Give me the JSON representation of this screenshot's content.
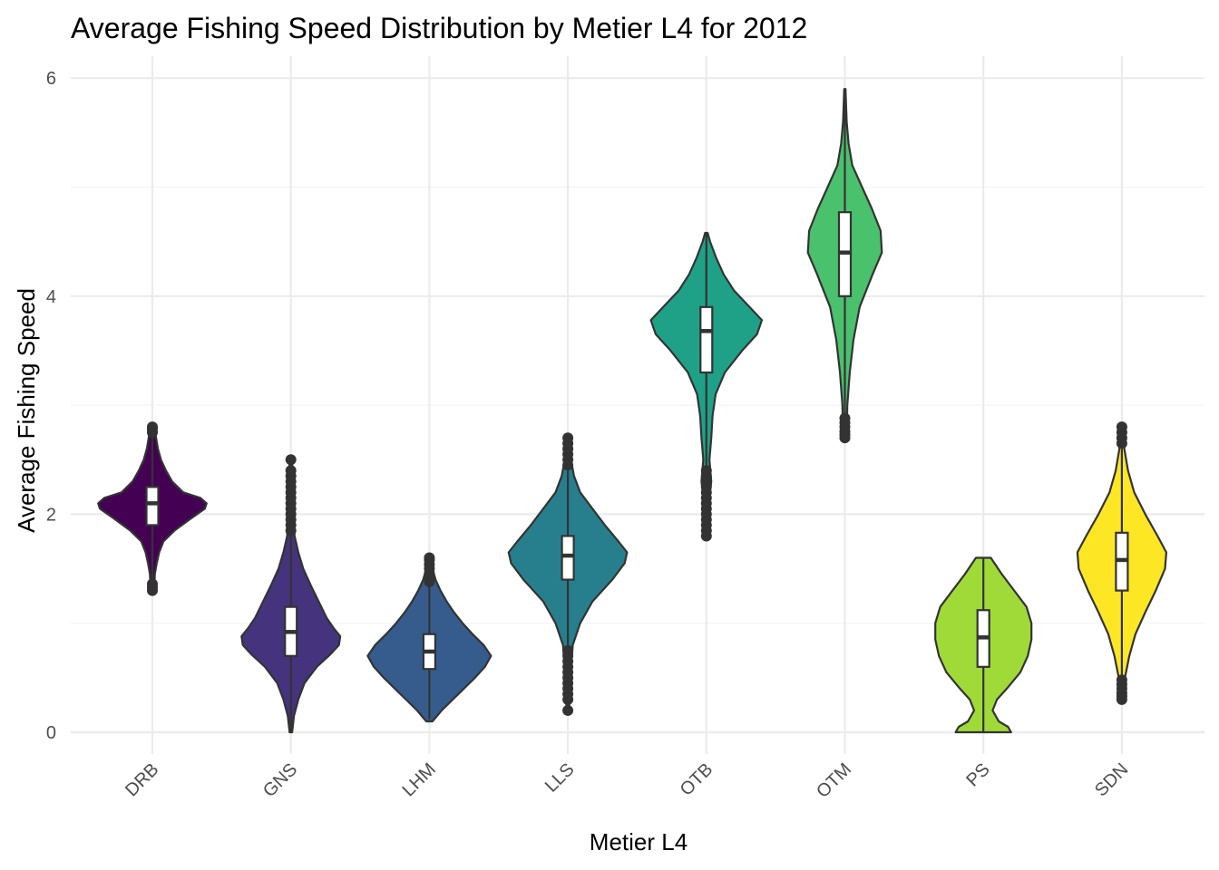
{
  "chart_data": {
    "type": "violin",
    "title": "Average Fishing Speed Distribution by Metier L4 for 2012",
    "xlabel": "Metier L4",
    "ylabel": "Average Fishing Speed",
    "ylim": [
      -0.2,
      6.2
    ],
    "yticks": [
      0,
      2,
      4,
      6
    ],
    "grid": true,
    "legend": "none",
    "categories": [
      "DRB",
      "GNS",
      "LHM",
      "LLS",
      "OTB",
      "OTM",
      "PS",
      "SDN"
    ],
    "series": [
      {
        "category": "DRB",
        "color": "#440154",
        "min": 1.3,
        "max": 2.8,
        "q1": 1.9,
        "median": 2.1,
        "q3": 2.25,
        "whisker_low": 1.38,
        "whisker_high": 2.72,
        "outliers": [
          1.3,
          1.33,
          1.36,
          2.75,
          2.78,
          2.8
        ],
        "density": [
          [
            1.3,
            0.03
          ],
          [
            1.45,
            0.04
          ],
          [
            1.55,
            0.07
          ],
          [
            1.65,
            0.11
          ],
          [
            1.75,
            0.18
          ],
          [
            1.85,
            0.36
          ],
          [
            1.95,
            0.6
          ],
          [
            2.05,
            0.85
          ],
          [
            2.1,
            0.88
          ],
          [
            2.15,
            0.78
          ],
          [
            2.2,
            0.5
          ],
          [
            2.3,
            0.32
          ],
          [
            2.4,
            0.22
          ],
          [
            2.5,
            0.14
          ],
          [
            2.6,
            0.09
          ],
          [
            2.7,
            0.06
          ],
          [
            2.8,
            0.04
          ]
        ]
      },
      {
        "category": "GNS",
        "color": "#46337E",
        "min": 0.0,
        "max": 2.5,
        "q1": 0.7,
        "median": 0.92,
        "q3": 1.15,
        "whisker_low": 0.0,
        "whisker_high": 1.8,
        "outliers": [
          1.85,
          1.9,
          1.95,
          2.0,
          2.05,
          2.1,
          2.15,
          2.2,
          2.25,
          2.3,
          2.35,
          2.4,
          2.5
        ],
        "density": [
          [
            0.0,
            0.02
          ],
          [
            0.15,
            0.05
          ],
          [
            0.3,
            0.12
          ],
          [
            0.45,
            0.22
          ],
          [
            0.6,
            0.42
          ],
          [
            0.72,
            0.65
          ],
          [
            0.8,
            0.78
          ],
          [
            0.88,
            0.8
          ],
          [
            0.95,
            0.7
          ],
          [
            1.05,
            0.58
          ],
          [
            1.2,
            0.45
          ],
          [
            1.35,
            0.32
          ],
          [
            1.5,
            0.2
          ],
          [
            1.65,
            0.12
          ],
          [
            1.8,
            0.06
          ],
          [
            2.0,
            0.04
          ],
          [
            2.5,
            0.02
          ]
        ]
      },
      {
        "category": "LHM",
        "color": "#365C8D",
        "min": 0.1,
        "max": 1.6,
        "q1": 0.58,
        "median": 0.74,
        "q3": 0.9,
        "whisker_low": 0.12,
        "whisker_high": 1.36,
        "outliers": [
          1.38,
          1.42,
          1.46,
          1.5,
          1.54,
          1.58,
          1.6
        ],
        "density": [
          [
            0.1,
            0.05
          ],
          [
            0.2,
            0.2
          ],
          [
            0.3,
            0.38
          ],
          [
            0.4,
            0.56
          ],
          [
            0.5,
            0.74
          ],
          [
            0.6,
            0.9
          ],
          [
            0.7,
            1.0
          ],
          [
            0.8,
            0.88
          ],
          [
            0.9,
            0.7
          ],
          [
            1.0,
            0.54
          ],
          [
            1.1,
            0.4
          ],
          [
            1.2,
            0.28
          ],
          [
            1.3,
            0.18
          ],
          [
            1.4,
            0.1
          ],
          [
            1.5,
            0.05
          ],
          [
            1.6,
            0.03
          ]
        ]
      },
      {
        "category": "LLS",
        "color": "#277F8E",
        "min": 0.2,
        "max": 2.7,
        "q1": 1.4,
        "median": 1.62,
        "q3": 1.8,
        "whisker_low": 0.8,
        "whisker_high": 2.4,
        "outliers": [
          0.2,
          0.3,
          0.35,
          0.4,
          0.45,
          0.5,
          0.55,
          0.6,
          0.65,
          0.7,
          0.75,
          2.45,
          2.5,
          2.55,
          2.6,
          2.65,
          2.7
        ],
        "density": [
          [
            0.2,
            0.02
          ],
          [
            0.5,
            0.04
          ],
          [
            0.8,
            0.08
          ],
          [
            1.0,
            0.2
          ],
          [
            1.2,
            0.4
          ],
          [
            1.4,
            0.72
          ],
          [
            1.55,
            0.92
          ],
          [
            1.65,
            0.96
          ],
          [
            1.75,
            0.82
          ],
          [
            1.9,
            0.6
          ],
          [
            2.05,
            0.4
          ],
          [
            2.2,
            0.2
          ],
          [
            2.35,
            0.1
          ],
          [
            2.5,
            0.05
          ],
          [
            2.7,
            0.02
          ]
        ]
      },
      {
        "category": "OTB",
        "color": "#1FA187",
        "min": 1.8,
        "max": 4.58,
        "q1": 3.3,
        "median": 3.68,
        "q3": 3.9,
        "whisker_low": 2.4,
        "whisker_high": 4.58,
        "outliers": [
          1.8,
          1.85,
          1.9,
          1.95,
          2.0,
          2.05,
          2.1,
          2.15,
          2.2,
          2.25,
          2.3,
          2.35,
          2.4
        ],
        "density": [
          [
            1.8,
            0.03
          ],
          [
            2.1,
            0.04
          ],
          [
            2.3,
            0.08
          ],
          [
            2.5,
            0.05
          ],
          [
            2.7,
            0.08
          ],
          [
            2.9,
            0.1
          ],
          [
            3.1,
            0.15
          ],
          [
            3.3,
            0.3
          ],
          [
            3.5,
            0.58
          ],
          [
            3.65,
            0.82
          ],
          [
            3.78,
            0.9
          ],
          [
            3.9,
            0.7
          ],
          [
            4.05,
            0.45
          ],
          [
            4.2,
            0.28
          ],
          [
            4.35,
            0.16
          ],
          [
            4.5,
            0.06
          ],
          [
            4.58,
            0.02
          ]
        ]
      },
      {
        "category": "OTM",
        "color": "#4AC16D",
        "min": 2.7,
        "max": 5.9,
        "q1": 4.0,
        "median": 4.4,
        "q3": 4.77,
        "whisker_low": 2.9,
        "whisker_high": 5.9,
        "outliers": [
          2.7,
          2.73,
          2.76,
          2.8,
          2.84,
          2.88
        ],
        "density": [
          [
            2.7,
            0.03
          ],
          [
            3.0,
            0.04
          ],
          [
            3.3,
            0.08
          ],
          [
            3.6,
            0.14
          ],
          [
            3.9,
            0.24
          ],
          [
            4.2,
            0.45
          ],
          [
            4.4,
            0.6
          ],
          [
            4.6,
            0.58
          ],
          [
            4.8,
            0.44
          ],
          [
            5.0,
            0.28
          ],
          [
            5.2,
            0.12
          ],
          [
            5.4,
            0.06
          ],
          [
            5.6,
            0.03
          ],
          [
            5.9,
            0.01
          ]
        ]
      },
      {
        "category": "PS",
        "color": "#A0DA39",
        "min": 0.0,
        "max": 1.6,
        "q1": 0.6,
        "median": 0.87,
        "q3": 1.12,
        "whisker_low": 0.0,
        "whisker_high": 1.6,
        "outliers": [],
        "density": [
          [
            0.0,
            0.45
          ],
          [
            0.05,
            0.4
          ],
          [
            0.1,
            0.25
          ],
          [
            0.2,
            0.15
          ],
          [
            0.3,
            0.22
          ],
          [
            0.4,
            0.38
          ],
          [
            0.55,
            0.6
          ],
          [
            0.7,
            0.72
          ],
          [
            0.85,
            0.78
          ],
          [
            1.0,
            0.78
          ],
          [
            1.15,
            0.7
          ],
          [
            1.3,
            0.5
          ],
          [
            1.45,
            0.3
          ],
          [
            1.6,
            0.12
          ]
        ]
      },
      {
        "category": "SDN",
        "color": "#FDE725",
        "min": 0.3,
        "max": 2.8,
        "q1": 1.3,
        "median": 1.58,
        "q3": 1.83,
        "whisker_low": 0.5,
        "whisker_high": 2.6,
        "outliers": [
          0.3,
          0.33,
          0.36,
          0.4,
          0.44,
          0.48,
          2.65,
          2.7,
          2.75,
          2.8
        ],
        "density": [
          [
            0.3,
            0.03
          ],
          [
            0.5,
            0.05
          ],
          [
            0.7,
            0.12
          ],
          [
            0.9,
            0.22
          ],
          [
            1.1,
            0.38
          ],
          [
            1.3,
            0.55
          ],
          [
            1.5,
            0.7
          ],
          [
            1.65,
            0.72
          ],
          [
            1.8,
            0.58
          ],
          [
            2.0,
            0.38
          ],
          [
            2.2,
            0.2
          ],
          [
            2.4,
            0.1
          ],
          [
            2.6,
            0.04
          ],
          [
            2.8,
            0.02
          ]
        ]
      }
    ]
  }
}
